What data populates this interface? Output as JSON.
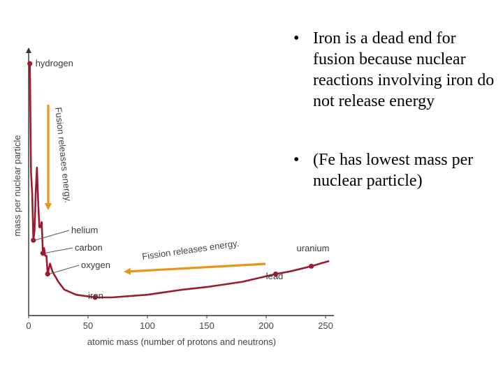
{
  "colors": {
    "curve": "#9b1b30",
    "arrow": "#e8951a",
    "axis": "#333333"
  },
  "bullets": [
    {
      "marker": "•",
      "text": "Iron is a dead end for fusion because nuclear reactions involving iron do not release energy"
    },
    {
      "marker": "•",
      "text": "(Fe has lowest mass per nuclear particle)"
    }
  ],
  "chart_data": {
    "type": "line",
    "xlabel": "atomic mass (number of protons and neutrons)",
    "ylabel": "mass per nuclear particle",
    "xlim": [
      0,
      250
    ],
    "ylim": [
      0,
      1
    ],
    "x_ticks": [
      0,
      50,
      100,
      150,
      200,
      250
    ],
    "y_ticks_shown": false,
    "series": [
      {
        "name": "mass per nuclear particle",
        "points": [
          [
            1,
            0.97
          ],
          [
            2,
            0.55
          ],
          [
            3,
            0.47
          ],
          [
            4,
            0.29
          ],
          [
            5,
            0.33
          ],
          [
            6,
            0.48
          ],
          [
            7,
            0.57
          ],
          [
            8,
            0.44
          ],
          [
            9,
            0.34
          ],
          [
            10,
            0.34
          ],
          [
            11,
            0.36
          ],
          [
            12,
            0.24
          ],
          [
            13,
            0.26
          ],
          [
            14,
            0.23
          ],
          [
            15,
            0.23
          ],
          [
            16,
            0.16
          ],
          [
            17,
            0.18
          ],
          [
            18,
            0.2
          ],
          [
            20,
            0.17
          ],
          [
            25,
            0.13
          ],
          [
            30,
            0.1
          ],
          [
            40,
            0.08
          ],
          [
            56,
            0.07
          ],
          [
            70,
            0.07
          ],
          [
            100,
            0.08
          ],
          [
            130,
            0.1
          ],
          [
            150,
            0.11
          ],
          [
            180,
            0.13
          ],
          [
            208,
            0.16
          ],
          [
            220,
            0.17
          ],
          [
            238,
            0.19
          ],
          [
            253,
            0.21
          ]
        ]
      }
    ],
    "markers": [
      {
        "label": "hydrogen",
        "x": 1,
        "y": 0.97
      },
      {
        "label": "helium",
        "x": 4,
        "y": 0.29
      },
      {
        "label": "carbon",
        "x": 12,
        "y": 0.24
      },
      {
        "label": "oxygen",
        "x": 16,
        "y": 0.16
      },
      {
        "label": "iron",
        "x": 56,
        "y": 0.07
      },
      {
        "label": "lead",
        "x": 208,
        "y": 0.16
      },
      {
        "label": "uranium",
        "x": 238,
        "y": 0.19
      }
    ],
    "annotations": [
      {
        "text": "Fusion releases energy.",
        "from": [
          16,
          0.85
        ],
        "to": [
          16,
          0.4
        ]
      },
      {
        "text": "Fission releases energy.",
        "from": [
          205,
          0.31
        ],
        "to": [
          80,
          0.13
        ]
      }
    ]
  }
}
